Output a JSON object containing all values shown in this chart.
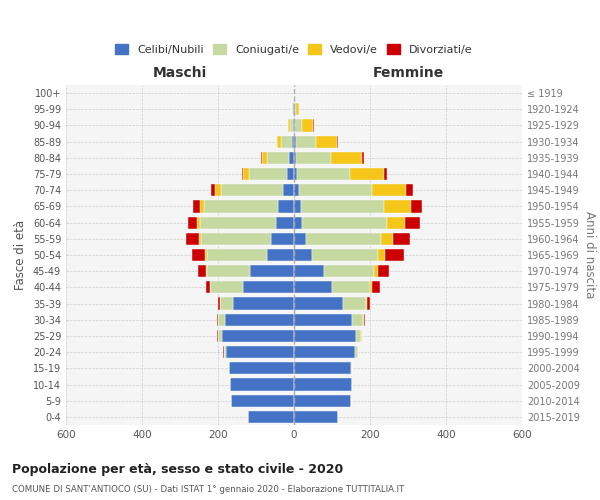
{
  "age_groups": [
    "0-4",
    "5-9",
    "10-14",
    "15-19",
    "20-24",
    "25-29",
    "30-34",
    "35-39",
    "40-44",
    "45-49",
    "50-54",
    "55-59",
    "60-64",
    "65-69",
    "70-74",
    "75-79",
    "80-84",
    "85-89",
    "90-94",
    "95-99",
    "100+"
  ],
  "birth_years": [
    "2015-2019",
    "2010-2014",
    "2005-2009",
    "2000-2004",
    "1995-1999",
    "1990-1994",
    "1985-1989",
    "1980-1984",
    "1975-1979",
    "1970-1974",
    "1965-1969",
    "1960-1964",
    "1955-1959",
    "1950-1954",
    "1945-1949",
    "1940-1944",
    "1935-1939",
    "1930-1934",
    "1925-1929",
    "1920-1924",
    "≤ 1919"
  ],
  "males": {
    "celibe": [
      120,
      165,
      168,
      170,
      180,
      190,
      182,
      160,
      135,
      115,
      70,
      60,
      48,
      42,
      28,
      18,
      12,
      6,
      3,
      2,
      0
    ],
    "coniugato": [
      0,
      0,
      0,
      2,
      5,
      10,
      18,
      35,
      85,
      115,
      160,
      185,
      200,
      195,
      165,
      100,
      58,
      28,
      8,
      3,
      0
    ],
    "vedovo": [
      0,
      0,
      0,
      0,
      0,
      0,
      0,
      0,
      1,
      2,
      3,
      5,
      7,
      10,
      15,
      15,
      14,
      10,
      5,
      1,
      0
    ],
    "divorziato": [
      0,
      0,
      0,
      0,
      1,
      2,
      2,
      5,
      10,
      20,
      35,
      35,
      25,
      20,
      10,
      5,
      4,
      2,
      1,
      0,
      0
    ]
  },
  "females": {
    "nubile": [
      115,
      150,
      152,
      150,
      160,
      162,
      152,
      128,
      100,
      78,
      48,
      32,
      22,
      18,
      12,
      8,
      6,
      4,
      3,
      2,
      0
    ],
    "coniugata": [
      0,
      0,
      0,
      2,
      8,
      15,
      30,
      62,
      100,
      132,
      172,
      198,
      222,
      218,
      192,
      140,
      92,
      55,
      18,
      4,
      0
    ],
    "vedova": [
      0,
      0,
      0,
      0,
      0,
      1,
      1,
      2,
      5,
      10,
      20,
      30,
      48,
      72,
      90,
      90,
      80,
      55,
      30,
      8,
      1
    ],
    "divorziata": [
      0,
      0,
      0,
      0,
      1,
      2,
      4,
      8,
      20,
      30,
      50,
      45,
      40,
      30,
      20,
      8,
      5,
      2,
      1,
      0,
      0
    ]
  },
  "colors": {
    "celibe": "#4472C4",
    "coniugato": "#C5D9A0",
    "vedovo": "#F5C518",
    "divorziato": "#CC0000"
  },
  "xlim": 600,
  "title": "Popolazione per età, sesso e stato civile - 2020",
  "subtitle": "COMUNE DI SANT'ANTIOCO (SU) - Dati ISTAT 1° gennaio 2020 - Elaborazione TUTTITALIA.IT",
  "ylabel_left": "Fasce di età",
  "ylabel_right": "Anni di nascita",
  "xlabel_left": "Maschi",
  "xlabel_right": "Femmine",
  "legend_labels": [
    "Celibi/Nubili",
    "Coniugati/e",
    "Vedovi/e",
    "Divorziati/e"
  ],
  "bg_color": "#ffffff",
  "bar_height": 0.75
}
